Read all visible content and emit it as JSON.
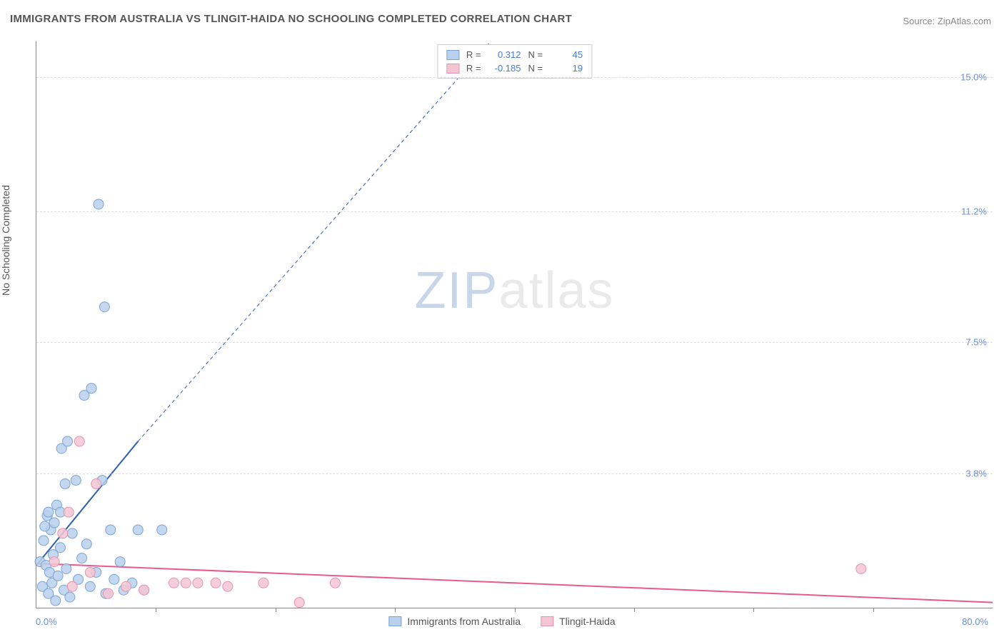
{
  "title": "IMMIGRANTS FROM AUSTRALIA VS TLINGIT-HAIDA NO SCHOOLING COMPLETED CORRELATION CHART",
  "source_prefix": "Source: ",
  "source_link": "ZipAtlas.com",
  "y_axis_label": "No Schooling Completed",
  "watermark": {
    "zip": "ZIP",
    "atlas": "atlas"
  },
  "chart": {
    "type": "scatter",
    "background_color": "#ffffff",
    "grid_color": "#dddddd",
    "axis_color": "#888888",
    "tick_label_color": "#6b8fd4",
    "xlim": [
      0,
      80
    ],
    "ylim": [
      0,
      16
    ],
    "x_origin_label": "0.0%",
    "x_max_label": "80.0%",
    "x_tick_positions": [
      10,
      20,
      30,
      40,
      50,
      60,
      70
    ],
    "y_ticks": [
      {
        "value": 3.8,
        "label": "3.8%"
      },
      {
        "value": 7.5,
        "label": "7.5%"
      },
      {
        "value": 11.2,
        "label": "11.2%"
      },
      {
        "value": 15.0,
        "label": "15.0%"
      }
    ],
    "series": [
      {
        "name": "Immigrants from Australia",
        "fill_color": "#b8d0ec",
        "stroke_color": "#7ba3d6",
        "marker_radius": 7,
        "marker_opacity": 0.85,
        "trend_line": {
          "x1": 0,
          "y1": 1.2,
          "x2": 8.5,
          "y2": 4.7,
          "x2_ext": 38,
          "y2_ext": 16,
          "color": "#2f5fb3",
          "width": 2,
          "dash_ext": "5,4"
        },
        "stats": {
          "R": "0.312",
          "N": "45"
        },
        "points": [
          [
            0.3,
            1.3
          ],
          [
            0.5,
            0.6
          ],
          [
            0.6,
            1.9
          ],
          [
            0.8,
            1.2
          ],
          [
            0.9,
            2.6
          ],
          [
            1.0,
            0.4
          ],
          [
            1.1,
            1.0
          ],
          [
            1.2,
            2.2
          ],
          [
            1.3,
            0.7
          ],
          [
            1.4,
            1.5
          ],
          [
            1.6,
            0.2
          ],
          [
            1.7,
            2.9
          ],
          [
            1.8,
            0.9
          ],
          [
            2.0,
            1.7
          ],
          [
            2.1,
            4.5
          ],
          [
            2.3,
            0.5
          ],
          [
            2.4,
            3.5
          ],
          [
            2.5,
            1.1
          ],
          [
            2.6,
            4.7
          ],
          [
            2.8,
            0.3
          ],
          [
            3.0,
            2.1
          ],
          [
            3.3,
            3.6
          ],
          [
            3.5,
            0.8
          ],
          [
            3.8,
            1.4
          ],
          [
            4.0,
            6.0
          ],
          [
            4.2,
            1.8
          ],
          [
            4.5,
            0.6
          ],
          [
            4.6,
            6.2
          ],
          [
            5.0,
            1.0
          ],
          [
            5.2,
            11.4
          ],
          [
            5.5,
            3.6
          ],
          [
            5.7,
            8.5
          ],
          [
            5.8,
            0.4
          ],
          [
            6.2,
            2.2
          ],
          [
            6.5,
            0.8
          ],
          [
            7.0,
            1.3
          ],
          [
            7.3,
            0.5
          ],
          [
            8.0,
            0.7
          ],
          [
            8.5,
            2.2
          ],
          [
            9.0,
            0.5
          ],
          [
            10.5,
            2.2
          ],
          [
            1.0,
            2.7
          ],
          [
            2.0,
            2.7
          ],
          [
            1.5,
            2.4
          ],
          [
            0.7,
            2.3
          ]
        ]
      },
      {
        "name": "Tlingit-Haida",
        "fill_color": "#f4c6d4",
        "stroke_color": "#e494af",
        "marker_radius": 7,
        "marker_opacity": 0.85,
        "trend_line": {
          "x1": 0,
          "y1": 1.25,
          "x2": 80,
          "y2": 0.15,
          "color": "#e75a8e",
          "width": 2
        },
        "stats": {
          "R": "-0.185",
          "N": "19"
        },
        "points": [
          [
            1.5,
            1.3
          ],
          [
            2.2,
            2.1
          ],
          [
            3.0,
            0.6
          ],
          [
            3.6,
            4.7
          ],
          [
            4.5,
            1.0
          ],
          [
            5.0,
            3.5
          ],
          [
            6.0,
            0.4
          ],
          [
            7.5,
            0.6
          ],
          [
            9.0,
            0.5
          ],
          [
            11.5,
            0.7
          ],
          [
            12.5,
            0.7
          ],
          [
            13.5,
            0.7
          ],
          [
            15.0,
            0.7
          ],
          [
            16.0,
            0.6
          ],
          [
            19.0,
            0.7
          ],
          [
            22.0,
            0.15
          ],
          [
            25.0,
            0.7
          ],
          [
            69.0,
            1.1
          ],
          [
            2.7,
            2.7
          ]
        ]
      }
    ],
    "legend_top_labels": {
      "R": "R =",
      "N": "N ="
    },
    "legend_bottom": [
      {
        "label": "Immigrants from Australia",
        "fill": "#b8d0ec",
        "stroke": "#7ba3d6"
      },
      {
        "label": "Tlingit-Haida",
        "fill": "#f4c6d4",
        "stroke": "#e494af"
      }
    ]
  }
}
